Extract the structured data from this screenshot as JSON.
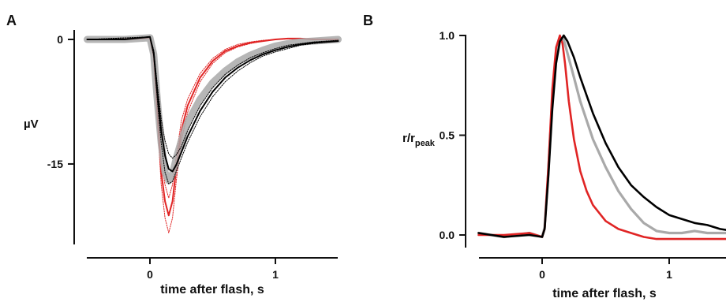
{
  "panels": {
    "a": {
      "label": "A"
    },
    "b": {
      "label": "B"
    }
  },
  "colors": {
    "red": "#e02424",
    "gray": "#a9a9a9",
    "black": "#000000"
  },
  "chart_data": [
    {
      "panel": "A",
      "type": "line",
      "xlabel": "time after flash, s",
      "ylabel": "µV",
      "xlim": [
        -0.5,
        1.5
      ],
      "ylim": [
        -24,
        0.5
      ],
      "xticks": [
        0,
        1
      ],
      "xtick_labels": [
        "0",
        "1"
      ],
      "yticks": [
        0,
        -15
      ],
      "ytick_labels": [
        "0",
        "-15"
      ],
      "grid": false,
      "legend": "none",
      "series": [
        {
          "color": "#e02424",
          "style": "solid",
          "x": [
            -0.5,
            -0.2,
            0.0,
            0.03,
            0.06,
            0.09,
            0.12,
            0.15,
            0.18,
            0.21,
            0.25,
            0.3,
            0.4,
            0.5,
            0.6,
            0.7,
            0.8,
            0.9,
            1.0,
            1.1,
            1.2,
            1.3,
            1.5
          ],
          "y": [
            0,
            0,
            0.2,
            -2,
            -9,
            -16,
            -19.5,
            -21.2,
            -19.5,
            -15.5,
            -11,
            -8,
            -4.6,
            -2.6,
            -1.4,
            -0.8,
            -0.4,
            -0.2,
            0,
            0.1,
            0.1,
            0,
            0
          ]
        },
        {
          "color": "#e02424",
          "style": "dotted",
          "x": [
            -0.5,
            0.0,
            0.03,
            0.06,
            0.09,
            0.12,
            0.15,
            0.18,
            0.21,
            0.25,
            0.3,
            0.4,
            0.5,
            0.6,
            0.7,
            0.8,
            0.9,
            1.0,
            1.1,
            1.2,
            1.5
          ],
          "y": [
            0,
            0.2,
            -2.4,
            -10,
            -17.5,
            -21.5,
            -23.3,
            -21.5,
            -17,
            -12.2,
            -8.8,
            -5.1,
            -2.9,
            -1.6,
            -0.9,
            -0.5,
            -0.2,
            0,
            0.1,
            0.1,
            0
          ]
        },
        {
          "color": "#e02424",
          "style": "dotted",
          "x": [
            -0.5,
            0.0,
            0.03,
            0.06,
            0.09,
            0.12,
            0.15,
            0.18,
            0.21,
            0.25,
            0.3,
            0.4,
            0.5,
            0.6,
            0.7,
            0.8,
            0.9,
            1.0,
            1.2,
            1.5
          ],
          "y": [
            0,
            0.2,
            -1.6,
            -8,
            -14.5,
            -17.5,
            -19.1,
            -17.5,
            -14,
            -9.8,
            -7.2,
            -4.1,
            -2.3,
            -1.2,
            -0.6,
            -0.3,
            -0.1,
            0,
            0.1,
            0
          ]
        },
        {
          "color": "#a9a9a9",
          "style": "band",
          "x": [
            -0.5,
            -0.2,
            0.0,
            0.03,
            0.06,
            0.09,
            0.12,
            0.15,
            0.18,
            0.21,
            0.25,
            0.3,
            0.4,
            0.5,
            0.6,
            0.7,
            0.8,
            0.9,
            1.0,
            1.1,
            1.2,
            1.3,
            1.5
          ],
          "y": [
            0,
            0,
            0.2,
            -1.8,
            -7.5,
            -12.5,
            -16,
            -17,
            -16.2,
            -14.3,
            -12.2,
            -10,
            -7.2,
            -5.2,
            -3.8,
            -2.7,
            -1.9,
            -1.3,
            -0.8,
            -0.5,
            -0.3,
            -0.2,
            0
          ]
        },
        {
          "color": "#000000",
          "style": "solid",
          "x": [
            -0.5,
            -0.2,
            0.0,
            0.03,
            0.06,
            0.09,
            0.12,
            0.15,
            0.18,
            0.21,
            0.25,
            0.3,
            0.4,
            0.5,
            0.6,
            0.7,
            0.8,
            0.9,
            1.0,
            1.1,
            1.2,
            1.3,
            1.4,
            1.5
          ],
          "y": [
            0,
            0,
            0.3,
            -1.6,
            -6.5,
            -11,
            -14,
            -15.6,
            -15.9,
            -15.1,
            -13.6,
            -11.7,
            -8.6,
            -6.3,
            -4.6,
            -3.4,
            -2.5,
            -1.8,
            -1.3,
            -0.9,
            -0.6,
            -0.4,
            -0.3,
            -0.2
          ]
        },
        {
          "color": "#000000",
          "style": "dotted",
          "x": [
            -0.5,
            0.0,
            0.03,
            0.06,
            0.09,
            0.12,
            0.15,
            0.18,
            0.21,
            0.25,
            0.3,
            0.4,
            0.5,
            0.6,
            0.7,
            0.8,
            0.9,
            1.0,
            1.1,
            1.2,
            1.3,
            1.5
          ],
          "y": [
            0,
            0.3,
            -2,
            -7.5,
            -12.5,
            -16,
            -17.4,
            -17.1,
            -15.9,
            -14.3,
            -12.4,
            -9.3,
            -6.9,
            -5.1,
            -3.8,
            -2.8,
            -2,
            -1.5,
            -1.1,
            -0.7,
            -0.5,
            -0.2
          ]
        },
        {
          "color": "#000000",
          "style": "dotted",
          "x": [
            -0.5,
            0.0,
            0.03,
            0.06,
            0.09,
            0.12,
            0.15,
            0.18,
            0.21,
            0.25,
            0.3,
            0.4,
            0.5,
            0.6,
            0.7,
            0.8,
            0.9,
            1.0,
            1.1,
            1.2,
            1.3,
            1.5
          ],
          "y": [
            0,
            0.3,
            -1.3,
            -5.6,
            -9.6,
            -12.2,
            -13.8,
            -14.3,
            -13.9,
            -12.9,
            -11,
            -8,
            -5.8,
            -4.2,
            -3.1,
            -2.2,
            -1.6,
            -1.1,
            -0.7,
            -0.5,
            -0.3,
            -0.1
          ]
        }
      ]
    },
    {
      "panel": "B",
      "type": "line",
      "xlabel": "time after flash, s",
      "ylabel": "r/r",
      "ylabel_sub": "peak",
      "xlim": [
        -0.5,
        1.5
      ],
      "ylim": [
        -0.1,
        1.0
      ],
      "xticks": [
        0,
        1
      ],
      "xtick_labels": [
        "0",
        "1"
      ],
      "yticks": [
        0.0,
        0.5,
        1.0
      ],
      "ytick_labels": [
        "0.0",
        "0.5",
        "1.0"
      ],
      "grid": false,
      "legend": "none",
      "series": [
        {
          "color": "#a9a9a9",
          "style": "thick",
          "x": [
            -0.5,
            -0.3,
            -0.1,
            0.0,
            0.02,
            0.05,
            0.08,
            0.11,
            0.14,
            0.17,
            0.2,
            0.25,
            0.3,
            0.4,
            0.5,
            0.6,
            0.7,
            0.8,
            0.9,
            1.0,
            1.1,
            1.2,
            1.3,
            1.5
          ],
          "y": [
            0.01,
            -0.01,
            0.01,
            -0.01,
            0.04,
            0.33,
            0.68,
            0.9,
            0.99,
            0.98,
            0.91,
            0.79,
            0.67,
            0.48,
            0.34,
            0.22,
            0.13,
            0.06,
            0.02,
            0.01,
            0.01,
            0.02,
            0.01,
            0.01
          ]
        },
        {
          "color": "#e02424",
          "style": "solid",
          "x": [
            -0.5,
            -0.3,
            -0.1,
            0.0,
            0.02,
            0.05,
            0.08,
            0.11,
            0.14,
            0.16,
            0.18,
            0.21,
            0.25,
            0.3,
            0.35,
            0.4,
            0.5,
            0.6,
            0.7,
            0.8,
            0.9,
            1.0,
            1.2,
            1.5
          ],
          "y": [
            0,
            0,
            0.01,
            -0.01,
            0.03,
            0.35,
            0.73,
            0.94,
            1.0,
            0.96,
            0.86,
            0.67,
            0.48,
            0.32,
            0.22,
            0.15,
            0.07,
            0.03,
            0.01,
            -0.01,
            -0.02,
            -0.02,
            -0.02,
            -0.02
          ]
        },
        {
          "color": "#000000",
          "style": "solid",
          "x": [
            -0.5,
            -0.3,
            -0.1,
            0.0,
            0.02,
            0.05,
            0.08,
            0.11,
            0.14,
            0.17,
            0.2,
            0.25,
            0.3,
            0.4,
            0.5,
            0.6,
            0.7,
            0.8,
            0.9,
            1.0,
            1.1,
            1.2,
            1.3,
            1.4,
            1.5
          ],
          "y": [
            0.01,
            -0.01,
            0,
            -0.01,
            0.03,
            0.3,
            0.63,
            0.86,
            0.97,
            1.0,
            0.97,
            0.89,
            0.79,
            0.61,
            0.46,
            0.34,
            0.25,
            0.19,
            0.14,
            0.1,
            0.08,
            0.06,
            0.05,
            0.03,
            0.02
          ]
        }
      ]
    }
  ]
}
